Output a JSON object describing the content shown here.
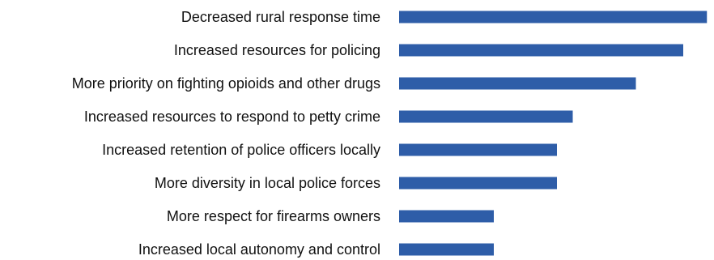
{
  "chart_data": {
    "type": "bar",
    "orientation": "horizontal",
    "categories": [
      "Decreased rural response time",
      "Increased resources for policing",
      "More priority on fighting opioids and other drugs",
      "Increased resources to respond to petty crime",
      "Increased retention of police officers locally",
      "More diversity in local police forces",
      "More respect for firearms owners",
      "Increased local autonomy and control"
    ],
    "values": [
      39,
      36,
      30,
      22,
      20,
      20,
      12,
      12
    ],
    "title": "",
    "xlabel": "",
    "ylabel": "",
    "xlim": [
      0,
      40
    ],
    "grid": false,
    "legend": "none",
    "bar_color": "#2E5DA8"
  }
}
